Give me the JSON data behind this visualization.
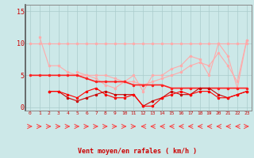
{
  "x": [
    0,
    1,
    2,
    3,
    4,
    5,
    6,
    7,
    8,
    9,
    10,
    11,
    12,
    13,
    14,
    15,
    16,
    17,
    18,
    19,
    20,
    21,
    22,
    23
  ],
  "line1": [
    10,
    10,
    10,
    10,
    10,
    10,
    10,
    10,
    10,
    10,
    10,
    10,
    10,
    10,
    10,
    10,
    10,
    10,
    10,
    10,
    10,
    10,
    10,
    10
  ],
  "line2": [
    5,
    5,
    5,
    5,
    5,
    5,
    4.5,
    4,
    4,
    4,
    4,
    3.5,
    3.5,
    3.5,
    3.5,
    3,
    3,
    3,
    3,
    3,
    3,
    3,
    3,
    3
  ],
  "line3": [
    null,
    11,
    6.5,
    6.5,
    5.5,
    5,
    5,
    4.5,
    3.5,
    3,
    4,
    5,
    2.5,
    5,
    5,
    6,
    6.5,
    8,
    7.5,
    5,
    10,
    8,
    3,
    10.5
  ],
  "line4": [
    null,
    null,
    2.5,
    2.5,
    2,
    1.5,
    2.5,
    3,
    2,
    1.5,
    1.5,
    2,
    0.2,
    0.2,
    1.5,
    2,
    2.5,
    2,
    2.5,
    2.5,
    1.5,
    1.5,
    2,
    2.5
  ],
  "line5": [
    null,
    null,
    2.5,
    2.5,
    1.5,
    1,
    1.5,
    2,
    2.5,
    2,
    2,
    2,
    0.2,
    1,
    1.5,
    2.5,
    2,
    2,
    3,
    3,
    2,
    1.5,
    2,
    2.5
  ],
  "line6": [
    null,
    null,
    null,
    null,
    null,
    5.5,
    5,
    5,
    5,
    4.5,
    4,
    4,
    3.5,
    4,
    4.5,
    5,
    5.5,
    6.5,
    7,
    6.5,
    8.5,
    6.5,
    4,
    10.5
  ],
  "bg_color": "#cce8e8",
  "grid_color": "#aacccc",
  "line1_color": "#ffaaaa",
  "line2_color": "#ff2222",
  "line3_color": "#ffaaaa",
  "line4_color": "#ff0000",
  "line5_color": "#cc0000",
  "line6_color": "#ffaaaa",
  "xlabel": "Vent moyen/en rafales ( km/h )",
  "ylabel_ticks": [
    0,
    5,
    10,
    15
  ],
  "xlim": [
    -0.5,
    23.5
  ],
  "ylim": [
    -0.5,
    16
  ],
  "arrow_dirs": [
    1,
    1,
    1,
    1,
    1,
    1,
    1,
    1,
    1,
    1,
    1,
    1,
    -1,
    -1,
    -1,
    -1,
    -1,
    -1,
    -1,
    -1,
    -1,
    -1,
    -1,
    1
  ]
}
